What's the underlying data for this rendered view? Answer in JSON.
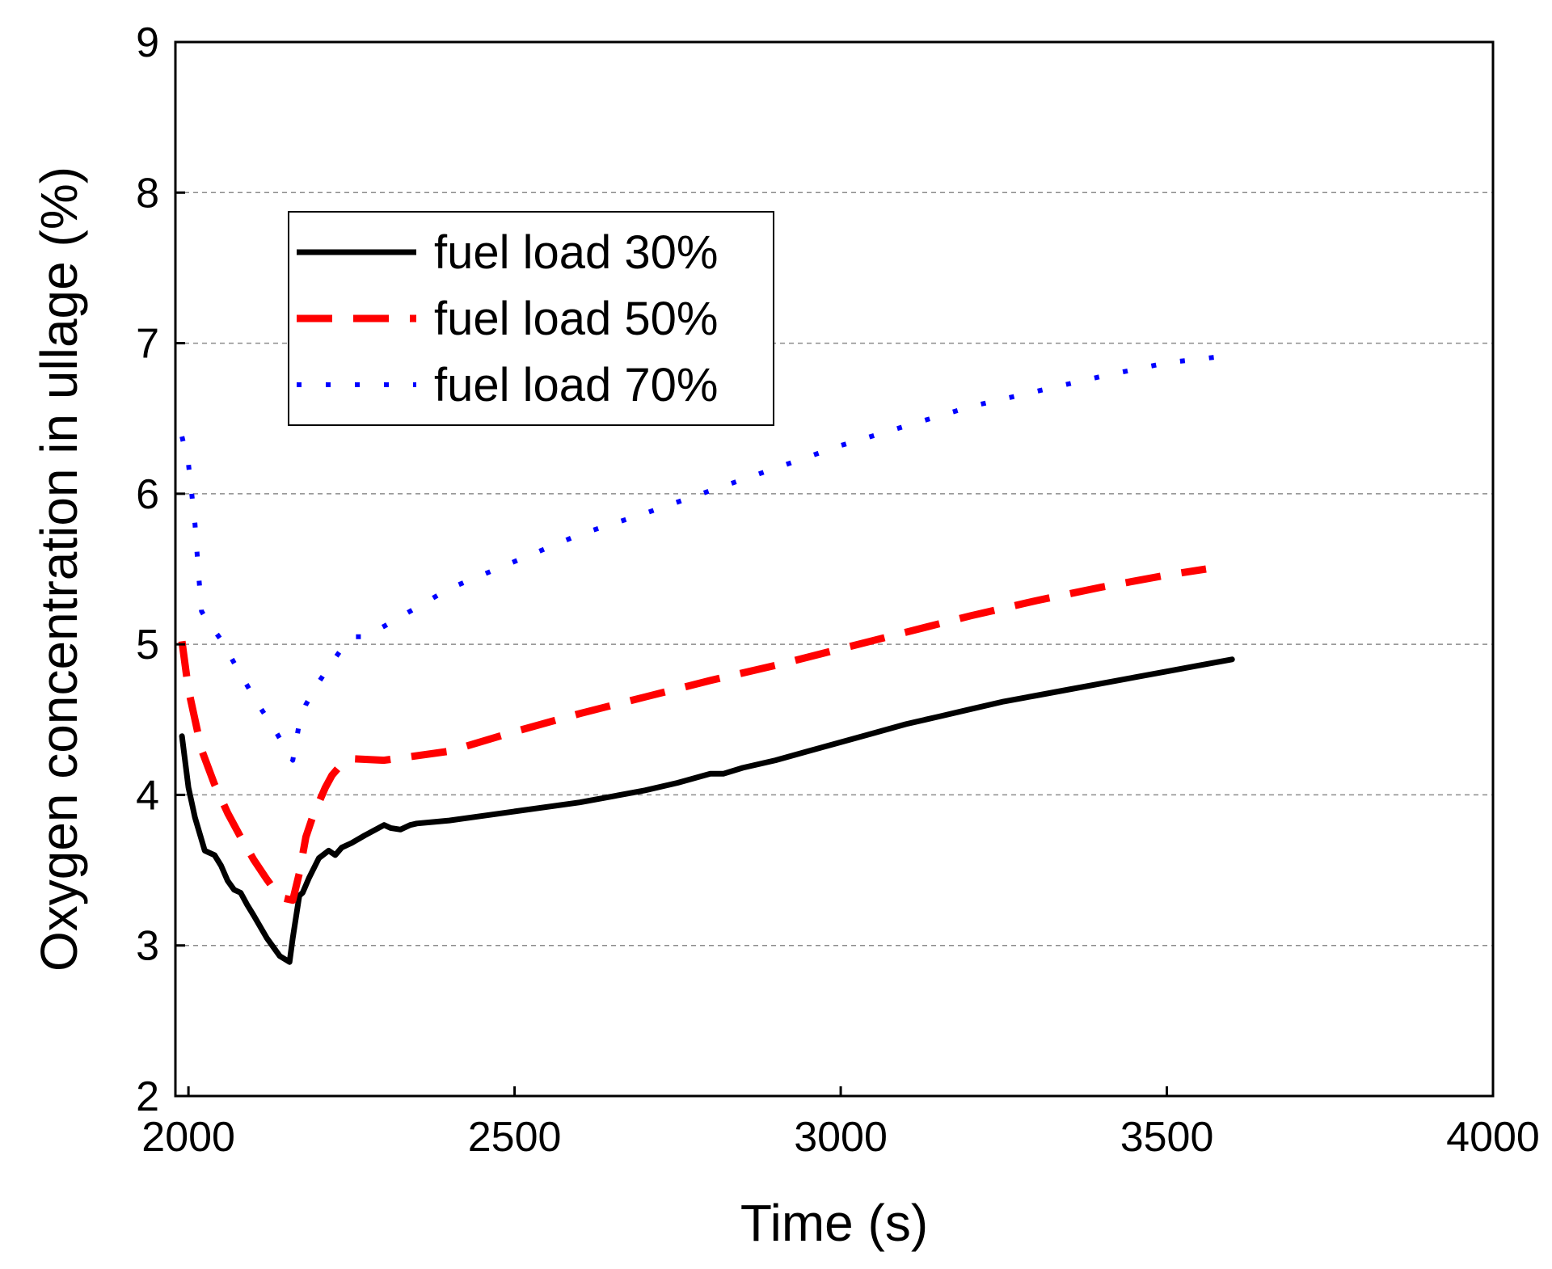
{
  "chart_data": {
    "type": "line",
    "title": "",
    "xlabel": "Time (s)",
    "ylabel": "Oxygen concentration in ullage (%)",
    "xlim": [
      1980,
      4000
    ],
    "ylim": [
      2,
      9
    ],
    "xticks": [
      2000,
      2500,
      3000,
      3500,
      4000
    ],
    "yticks": [
      2,
      3,
      4,
      5,
      6,
      7,
      8,
      9
    ],
    "xtick_labels": [
      "2000",
      "2500",
      "3000",
      "3500",
      "4000"
    ],
    "ytick_labels": [
      "2",
      "3",
      "4",
      "5",
      "6",
      "7",
      "8",
      "9"
    ],
    "grid": "horizontal dashed",
    "legend_position": "upper-left",
    "series": [
      {
        "name": "fuel load 30%",
        "label": "fuel load 30%",
        "color": "#000000",
        "style": "solid",
        "x": [
          1990,
          2000,
          2010,
          2025,
          2040,
          2050,
          2060,
          2070,
          2080,
          2090,
          2100,
          2120,
          2140,
          2155,
          2160,
          2170,
          2175,
          2185,
          2200,
          2215,
          2225,
          2235,
          2250,
          2270,
          2300,
          2310,
          2325,
          2340,
          2350,
          2400,
          2500,
          2600,
          2700,
          2750,
          2800,
          2820,
          2850,
          2900,
          2950,
          3000,
          3050,
          3100,
          3150,
          3200,
          3250,
          3300,
          3350,
          3400,
          3450,
          3500,
          3550,
          3600
        ],
        "y": [
          4.39,
          4.05,
          3.85,
          3.63,
          3.6,
          3.53,
          3.43,
          3.37,
          3.35,
          3.27,
          3.2,
          3.05,
          2.93,
          2.89,
          3.05,
          3.33,
          3.35,
          3.45,
          3.58,
          3.63,
          3.6,
          3.65,
          3.68,
          3.73,
          3.8,
          3.78,
          3.77,
          3.8,
          3.81,
          3.83,
          3.89,
          3.95,
          4.03,
          4.08,
          4.14,
          4.14,
          4.18,
          4.23,
          4.29,
          4.35,
          4.41,
          4.47,
          4.52,
          4.57,
          4.62,
          4.66,
          4.7,
          4.74,
          4.78,
          4.82,
          4.86,
          4.9
        ]
      },
      {
        "name": "fuel load 50%",
        "label": "fuel load 50%",
        "color": "#ff0000",
        "style": "dashed",
        "x": [
          1990,
          2000,
          2020,
          2040,
          2060,
          2080,
          2100,
          2120,
          2140,
          2160,
          2170,
          2180,
          2190,
          2200,
          2210,
          2220,
          2230,
          2240,
          2250,
          2300,
          2400,
          2500,
          2600,
          2700,
          2800,
          2900,
          3000,
          3100,
          3200,
          3300,
          3400,
          3500,
          3560
        ],
        "y": [
          5.02,
          4.7,
          4.3,
          4.07,
          3.88,
          3.72,
          3.57,
          3.44,
          3.32,
          3.3,
          3.48,
          3.72,
          3.85,
          3.95,
          4.05,
          4.13,
          4.18,
          4.22,
          4.24,
          4.23,
          4.29,
          4.42,
          4.54,
          4.65,
          4.76,
          4.86,
          4.97,
          5.08,
          5.19,
          5.29,
          5.38,
          5.46,
          5.5
        ]
      },
      {
        "name": "fuel load 70%",
        "label": "fuel load 70%",
        "color": "#0000ff",
        "style": "dotted",
        "x": [
          1990,
          2000,
          2005,
          2010,
          2015,
          2020,
          2030,
          2050,
          2080,
          2110,
          2130,
          2150,
          2160,
          2165,
          2170,
          2180,
          2200,
          2220,
          2240,
          2250,
          2270,
          2300,
          2400,
          2500,
          2600,
          2700,
          2800,
          2900,
          3000,
          3100,
          3200,
          3300,
          3400,
          3500,
          3600
        ],
        "y": [
          6.38,
          6.2,
          6.0,
          5.8,
          5.5,
          5.22,
          5.15,
          5.03,
          4.8,
          4.58,
          4.45,
          4.3,
          4.23,
          4.35,
          4.48,
          4.6,
          4.75,
          4.88,
          5.0,
          5.05,
          5.05,
          5.12,
          5.37,
          5.55,
          5.73,
          5.87,
          6.02,
          6.17,
          6.32,
          6.45,
          6.58,
          6.68,
          6.78,
          6.87,
          6.92
        ]
      }
    ]
  }
}
